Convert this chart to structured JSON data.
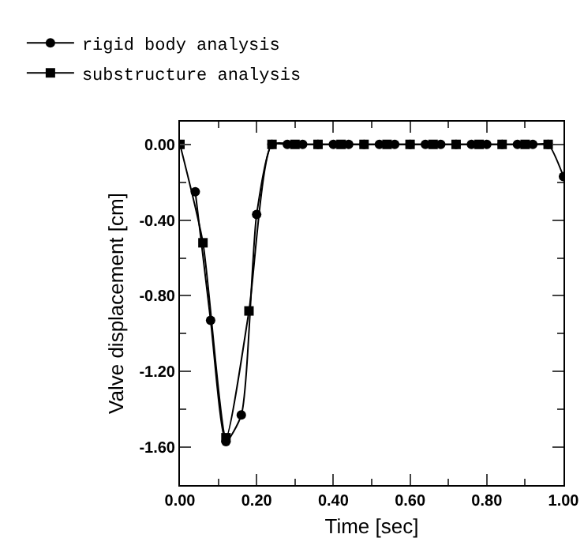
{
  "chart_data": {
    "type": "line",
    "xlabel": "Time [sec]",
    "ylabel": "Valve displacement [cm]",
    "xlim": [
      0,
      1
    ],
    "xticks": [
      {
        "value": 0,
        "label": "0.00"
      },
      {
        "value": 0.2,
        "label": "0.20"
      },
      {
        "value": 0.4,
        "label": "0.40"
      },
      {
        "value": 0.6,
        "label": "0.60"
      },
      {
        "value": 0.8,
        "label": "0.80"
      },
      {
        "value": 1,
        "label": "1.00"
      }
    ],
    "ylim": [
      -1.8,
      0.12
    ],
    "yticks": [
      {
        "value": -1.6,
        "label": "-1.60"
      },
      {
        "value": -1.2,
        "label": "-1.20"
      },
      {
        "value": -0.8,
        "label": "-0.80"
      },
      {
        "value": -0.4,
        "label": "-0.40"
      },
      {
        "value": 0,
        "label": "0.00"
      }
    ],
    "grid": false,
    "legend": "top left",
    "line_style": "solid",
    "series": [
      {
        "name": "rigid body analysis",
        "color": "#000000",
        "marker": "circle",
        "x": [
          0.04,
          0.08,
          0.12,
          0.16,
          0.2,
          0.24,
          0.28,
          0.32,
          0.36,
          0.4,
          0.44,
          0.48,
          0.52,
          0.56,
          0.6,
          0.64,
          0.68,
          0.72,
          0.76,
          0.8,
          0.84,
          0.88,
          0.92,
          0.96,
          1
        ],
        "values": [
          -0.25,
          -0.93,
          -1.57,
          -1.43,
          -0.37,
          0,
          0,
          0,
          0,
          0,
          0,
          0,
          0,
          0,
          0,
          0,
          0,
          0,
          0,
          0,
          0,
          0,
          0,
          0,
          -0.17
        ]
      },
      {
        "name": "substructure analysis",
        "color": "#000000",
        "marker": "square",
        "x": [
          0,
          0.06,
          0.12,
          0.18,
          0.24,
          0.3,
          0.36,
          0.42,
          0.48,
          0.54,
          0.6,
          0.66,
          0.72,
          0.78,
          0.84,
          0.9,
          0.96
        ],
        "values": [
          0,
          -0.52,
          -1.55,
          -0.88,
          0,
          0,
          0,
          0,
          0,
          0,
          0,
          0,
          0,
          0,
          0,
          0,
          0
        ]
      }
    ]
  }
}
